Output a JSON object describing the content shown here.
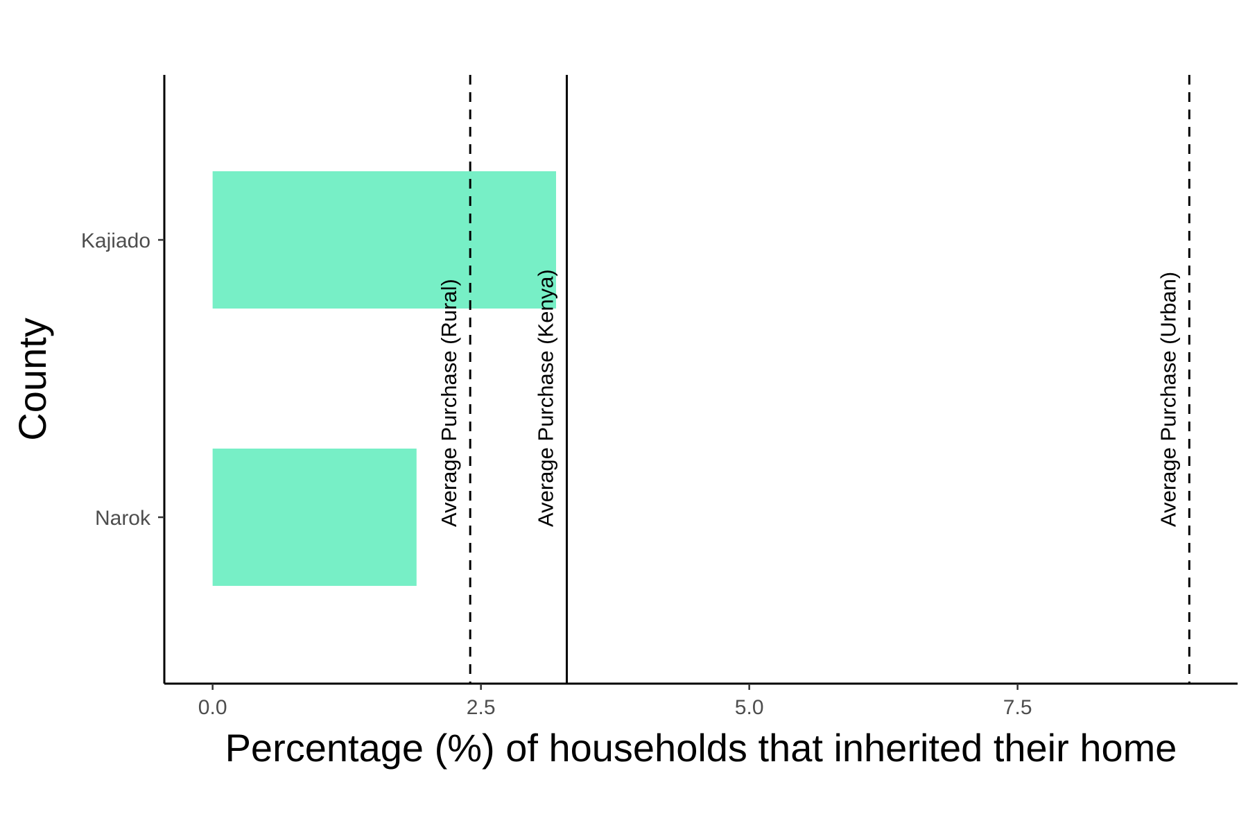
{
  "chart_data": {
    "type": "bar",
    "orientation": "horizontal",
    "categories": [
      "Kajiado",
      "Narok"
    ],
    "values": [
      3.2,
      1.9
    ],
    "xlabel": "Percentage (%) of households that inherited their home",
    "ylabel": "County",
    "xlim": [
      -0.45,
      9.55
    ],
    "xticks": [
      0.0,
      2.5,
      5.0,
      7.5
    ],
    "xtick_labels": [
      "0.0",
      "2.5",
      "5.0",
      "7.5"
    ],
    "grid": false,
    "bar_color": "#77EFC6",
    "reference_lines": [
      {
        "label": "Average Purchase (Rural)",
        "value": 2.4,
        "style": "dashed"
      },
      {
        "label": "Average Purchase (Kenya)",
        "value": 3.3,
        "style": "solid"
      },
      {
        "label": "Average Purchase (Urban)",
        "value": 9.1,
        "style": "dashed"
      }
    ]
  }
}
